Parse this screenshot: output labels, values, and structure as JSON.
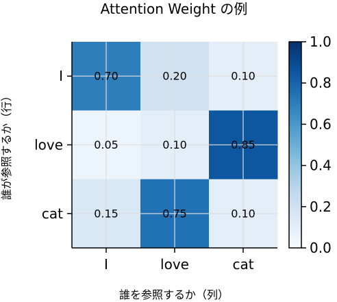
{
  "chart_data": {
    "type": "heatmap",
    "title": "Attention Weight の例",
    "xlabel": "誰を参照するか（列）",
    "ylabel": "誰が参照するか（行）",
    "x_categories": [
      "I",
      "love",
      "cat"
    ],
    "y_categories": [
      "I",
      "love",
      "cat"
    ],
    "values": [
      [
        0.7,
        0.2,
        0.1
      ],
      [
        0.05,
        0.1,
        0.85
      ],
      [
        0.15,
        0.75,
        0.1
      ]
    ],
    "value_labels": [
      [
        "0.70",
        "0.20",
        "0.10"
      ],
      [
        "0.05",
        "0.10",
        "0.85"
      ],
      [
        "0.15",
        "0.75",
        "0.10"
      ]
    ],
    "colorbar": {
      "range": [
        0.0,
        1.0
      ],
      "ticks": [
        "0.0",
        "0.2",
        "0.4",
        "0.6",
        "0.8",
        "1.0"
      ],
      "colormap": "Blues"
    },
    "grid": true
  }
}
